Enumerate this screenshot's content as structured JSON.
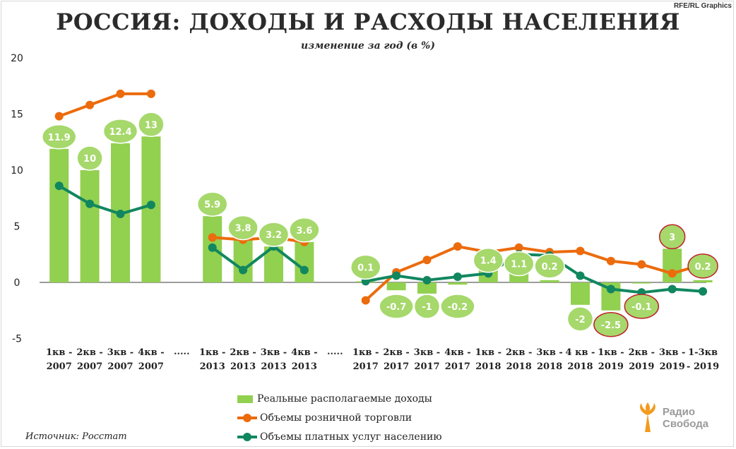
{
  "credit": "RFE/RL Graphics",
  "title": "РОССИЯ: ДОХОДЫ И РАСХОДЫ НАСЕЛЕНИЯ",
  "subtitle": "изменение  за год (в %)",
  "source": "Источник: Росстат",
  "logo": {
    "line1": "Радио",
    "line2": "Свобода"
  },
  "colors": {
    "bars": "#92d050",
    "retail": "#ec6b0c",
    "services": "#11875f",
    "bubble_fill": "#a6d86b",
    "bubble_border_red": "#c0202a",
    "bubble_border_normal": "#ffffff",
    "logo_orange": "#f39a1e"
  },
  "chart_data": {
    "type": "bar",
    "y_ticks": [
      "20",
      "15",
      "10",
      "5",
      "0",
      "-5"
    ],
    "ylim": [
      -5,
      20
    ],
    "categories": [
      [
        "1кв -",
        "2007"
      ],
      [
        "2кв -",
        "2007"
      ],
      [
        "3кв -",
        "2007"
      ],
      [
        "4кв -",
        "2007"
      ],
      [
        ".....",
        ""
      ],
      [
        "1кв -",
        "2013"
      ],
      [
        "2кв -",
        "2013"
      ],
      [
        "3кв -",
        "2013"
      ],
      [
        "4кв -",
        "2013"
      ],
      [
        ".....",
        ""
      ],
      [
        "1кв -",
        "2017"
      ],
      [
        "2кв -",
        "2017"
      ],
      [
        "3кв -",
        "2017"
      ],
      [
        "4кв -",
        "2017"
      ],
      [
        "1кв -",
        "2018"
      ],
      [
        "2кв -",
        "2018"
      ],
      [
        "3кв -",
        "2018"
      ],
      [
        "4 кв -",
        "2018"
      ],
      [
        "1кв -",
        "2019"
      ],
      [
        "2кв -",
        "2019"
      ],
      [
        "3кв -",
        "2019"
      ],
      [
        "1-3кв",
        "- 2019"
      ]
    ],
    "series": [
      {
        "name": "Реальные располагаемые доходы",
        "kind": "bar",
        "values": [
          11.9,
          10,
          12.4,
          13,
          null,
          5.9,
          3.8,
          3.2,
          3.6,
          null,
          0.1,
          -0.7,
          -1,
          -0.2,
          1.4,
          1.1,
          0.2,
          -2,
          -2.5,
          -0.1,
          3,
          0.2
        ],
        "labels": [
          "11.9",
          "10",
          "12.4",
          "13",
          "",
          "5.9",
          "3.8",
          "3.2",
          "3.6",
          "",
          "0.1",
          "-0.7",
          "-1",
          "-0.2",
          "1.4",
          "1.1",
          "0.2",
          "-2",
          "-2.5",
          "-0.1",
          "3",
          "0.2"
        ],
        "red_outline": [
          false,
          false,
          false,
          false,
          false,
          false,
          false,
          false,
          false,
          false,
          false,
          false,
          false,
          false,
          false,
          false,
          false,
          false,
          true,
          true,
          true,
          true
        ]
      },
      {
        "name": "Объемы розничной торговли",
        "kind": "line",
        "values": [
          14.8,
          15.8,
          16.8,
          16.8,
          null,
          4,
          3.8,
          4,
          3.6,
          null,
          -1.6,
          0.9,
          2,
          3.2,
          2.7,
          3.1,
          2.7,
          2.8,
          1.9,
          1.6,
          0.8,
          1.6
        ]
      },
      {
        "name": "Объемы платных услуг населению",
        "kind": "line",
        "values": [
          8.6,
          7,
          6.1,
          6.9,
          null,
          3.1,
          1.1,
          3.2,
          1.1,
          null,
          0.1,
          0.6,
          0.2,
          0.5,
          0.8,
          2.5,
          2.4,
          0.6,
          -0.6,
          -0.9,
          -0.6,
          -0.8
        ]
      }
    ],
    "legend_position": "bottom-center",
    "grid": false
  }
}
